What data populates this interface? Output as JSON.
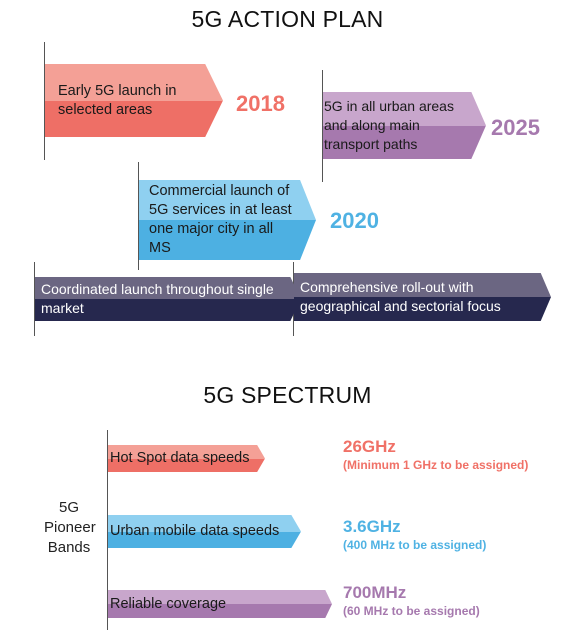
{
  "action_plan": {
    "title": "5G ACTION PLAN",
    "items": {
      "y2018": {
        "text": "Early 5G launch in selected areas",
        "year": "2018",
        "color": "#f07167"
      },
      "y2025": {
        "text": "5G in all urban areas and along main transport paths",
        "year": "2025",
        "color": "#a679ae"
      },
      "y2020": {
        "text": "Commercial launch of 5G services in at least one major city in all MS",
        "year": "2020",
        "color": "#4fb2e3"
      }
    },
    "bars": {
      "left": "Coordinated launch throughout single market",
      "right": "Comprehensive roll-out with geographical and sectorial focus"
    }
  },
  "spectrum": {
    "title": "5G SPECTRUM",
    "side_label": "5G Pioneer Bands",
    "bands": [
      {
        "label": "Hot Spot data speeds",
        "freq": "26GHz",
        "note": "(Minimum 1 GHz to be assigned)",
        "color": "#f07167"
      },
      {
        "label": "Urban mobile data speeds",
        "freq": "3.6GHz",
        "note": "(400 MHz to be assigned)",
        "color": "#4fb2e3"
      },
      {
        "label": "Reliable coverage",
        "freq": "700MHz",
        "note": "(60 MHz to be assigned)",
        "color": "#a679ae"
      }
    ]
  }
}
